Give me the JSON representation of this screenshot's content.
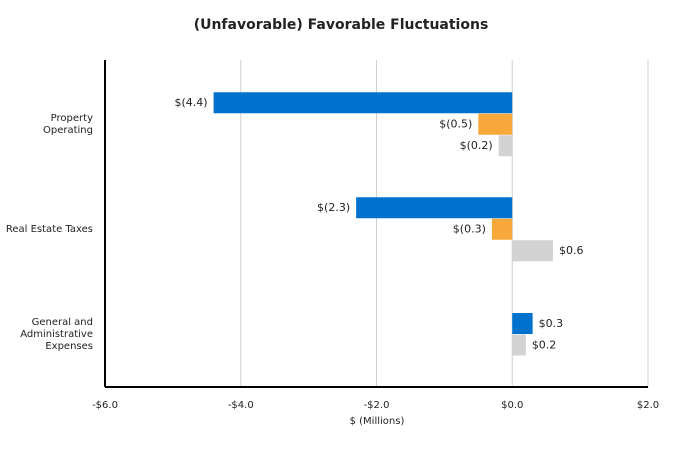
{
  "chart_data": {
    "type": "hbar",
    "title": "(Unfavorable) Favorable Fluctuations",
    "xlabel": "$ (Millions)",
    "categories": [
      "Property Operating",
      "Real Estate Taxes",
      "General and Administrative Expenses"
    ],
    "series": [
      {
        "color": "#0072ce",
        "values": [
          -4.4,
          -2.3,
          0.3
        ],
        "value_labels": [
          "$(4.4)",
          "$(2.3)",
          "$0.3"
        ]
      },
      {
        "color": "#f6a83a",
        "values": [
          -0.5,
          -0.3,
          null
        ],
        "value_labels": [
          "$(0.5)",
          "$(0.3)",
          null
        ]
      },
      {
        "color": "#d3d3d3",
        "values": [
          -0.2,
          0.6,
          0.2
        ],
        "value_labels": [
          "$(0.2)",
          "$0.6",
          "$0.2"
        ]
      }
    ],
    "xlim": [
      -6,
      2
    ],
    "xticks": [
      {
        "value": -6,
        "label": "-$6.0"
      },
      {
        "value": -4,
        "label": "-$4.0"
      },
      {
        "value": -2,
        "label": "-$2.0"
      },
      {
        "value": 0,
        "label": "$0.0"
      },
      {
        "value": 2,
        "label": "$2.0"
      }
    ],
    "grid": true
  }
}
